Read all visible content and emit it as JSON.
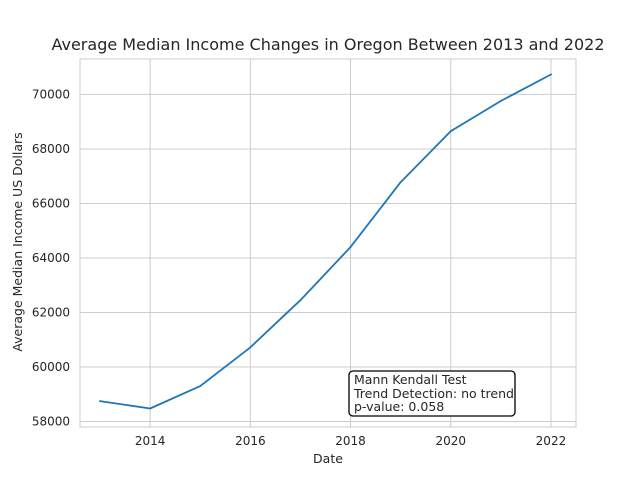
{
  "chart_data": {
    "type": "line",
    "title": "Average Median Income Changes in Oregon Between 2013 and 2022",
    "xlabel": "Date",
    "ylabel": "Average Median Income US Dollars",
    "xlim": [
      2012.6,
      2022.5
    ],
    "ylim": [
      57800,
      71300
    ],
    "x_ticks": [
      2014,
      2016,
      2018,
      2020,
      2022
    ],
    "y_ticks": [
      58000,
      60000,
      62000,
      64000,
      66000,
      68000,
      70000
    ],
    "grid": true,
    "series": [
      {
        "x": [
          2013,
          2014,
          2015,
          2016,
          2017,
          2018,
          2019,
          2020,
          2021,
          2022
        ],
        "values": [
          58750,
          58480,
          59300,
          60720,
          62450,
          64400,
          66780,
          68650,
          69760,
          70730
        ],
        "color": "#1f77b4"
      }
    ],
    "annotation": {
      "lines": [
        "Mann Kendall Test",
        "Trend Detection: no trend",
        "p-value: 0.058"
      ]
    }
  }
}
